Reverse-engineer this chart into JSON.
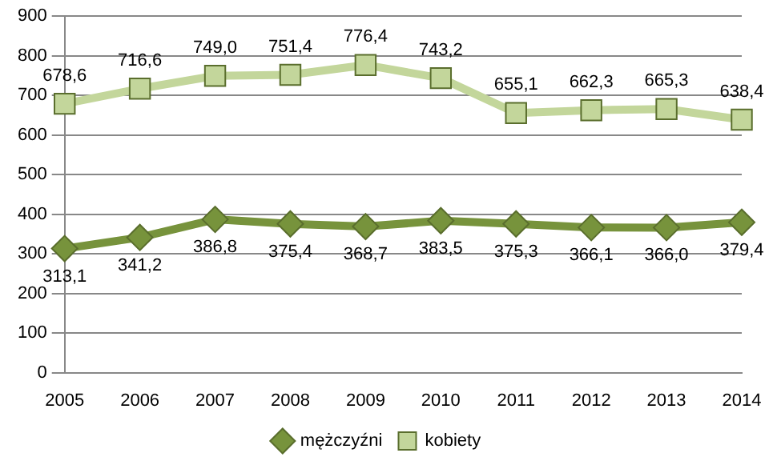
{
  "chart_data": {
    "type": "line",
    "categories": [
      "2005",
      "2006",
      "2007",
      "2008",
      "2009",
      "2010",
      "2011",
      "2012",
      "2013",
      "2014"
    ],
    "series": [
      {
        "name": "mężczyźni",
        "color": "#77933c",
        "marker": "diamond",
        "values": [
          313.1,
          341.2,
          386.8,
          375.4,
          368.7,
          383.5,
          375.3,
          366.1,
          366.0,
          379.4
        ],
        "value_labels": [
          "313,1",
          "341,2",
          "386,8",
          "375,4",
          "368,7",
          "383,5",
          "375,3",
          "366,1",
          "366,0",
          "379,4"
        ]
      },
      {
        "name": "kobiety",
        "color": "#c3d69b",
        "marker": "square",
        "values": [
          678.6,
          716.6,
          749.0,
          751.4,
          776.4,
          743.2,
          655.1,
          662.3,
          665.3,
          638.4
        ],
        "value_labels": [
          "678,6",
          "716,6",
          "749,0",
          "751,4",
          "776,4",
          "743,2",
          "655,1",
          "662,3",
          "665,3",
          "638,4"
        ]
      }
    ],
    "ylim": [
      0,
      900
    ],
    "yticks": [
      0,
      100,
      200,
      300,
      400,
      500,
      600,
      700,
      800,
      900
    ],
    "grid": "y",
    "legend": "bottom",
    "line_style": "solid"
  }
}
